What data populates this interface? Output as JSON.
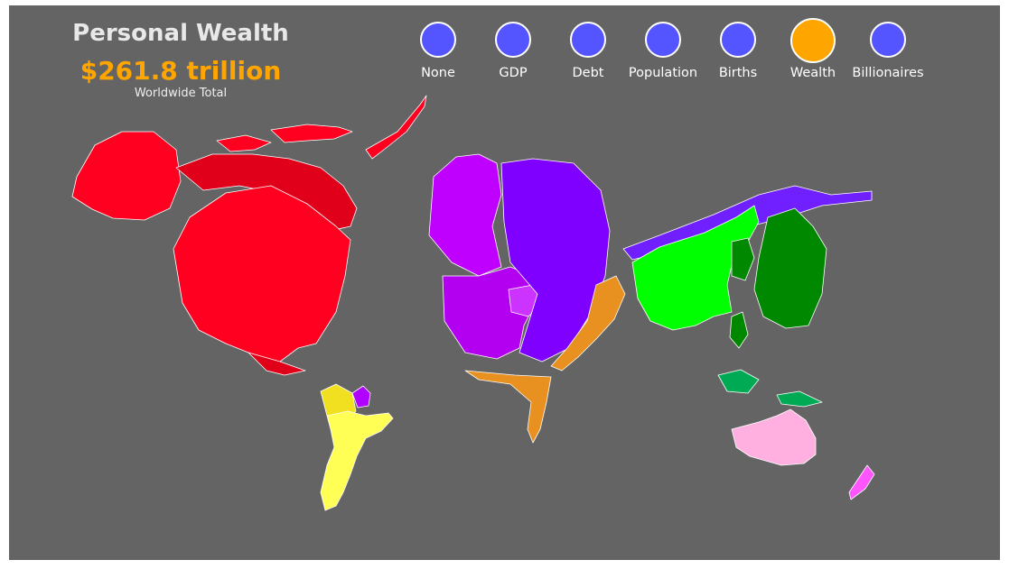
{
  "header": {
    "title": "Personal Wealth",
    "total": "$261.8 trillion",
    "subtitle": "Worldwide Total"
  },
  "buttons": [
    {
      "label": "None",
      "color": "#5555ff",
      "active": false
    },
    {
      "label": "GDP",
      "color": "#5555ff",
      "active": false
    },
    {
      "label": "Debt",
      "color": "#5555ff",
      "active": false
    },
    {
      "label": "Population",
      "color": "#5555ff",
      "active": false
    },
    {
      "label": "Births",
      "color": "#5555ff",
      "active": false
    },
    {
      "label": "Wealth",
      "color": "#ffa500",
      "active": true
    },
    {
      "label": "Billionaires",
      "color": "#5555ff",
      "active": false
    }
  ],
  "map": {
    "background": "#646464",
    "colors": {
      "north_america": "#ff0020",
      "canada": "#e0001a",
      "south_america": "#ffff55",
      "central_america": "#f0e020",
      "cuba_caribbean": "#b000ff",
      "western_europe": "#bf00ff",
      "eastern_europe": "#8000ff",
      "africa": "#e89020",
      "china_region": "#00ff00",
      "japan_korea": "#008800",
      "southeast_asia": "#00aa55",
      "australia": "#ffb0e0",
      "new_zealand": "#ff55ff",
      "russia": "#7020ff"
    }
  }
}
